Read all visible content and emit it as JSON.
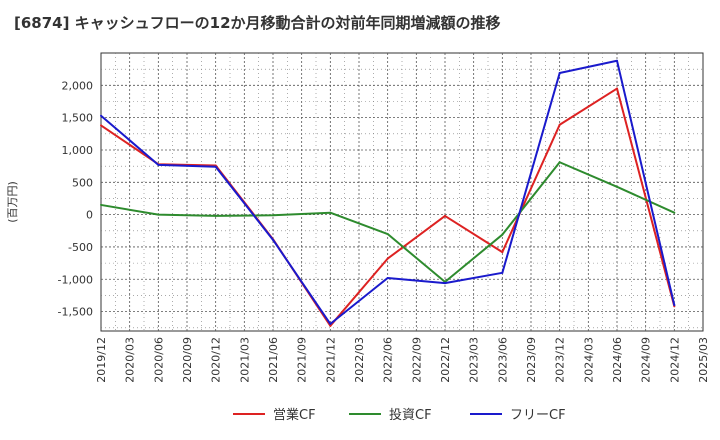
{
  "chart_data": {
    "type": "line",
    "title": "[6874]  キャッシュフローの12か月移動合計の対前年同期増減額の推移",
    "ylabel": "(百万円)",
    "xlabel": "",
    "ylim": [
      -1800,
      2500
    ],
    "yticks": [
      -1500,
      -1000,
      -500,
      0,
      500,
      1000,
      1500,
      2000
    ],
    "ytick_labels": [
      "-1,500",
      "-1,000",
      "-500",
      "0",
      "500",
      "1,000",
      "1,500",
      "2,000"
    ],
    "x_tick_labels": [
      "2019/12",
      "2020/03",
      "2020/06",
      "2020/09",
      "2020/12",
      "2021/03",
      "2021/06",
      "2021/09",
      "2021/12",
      "2022/03",
      "2022/06",
      "2022/09",
      "2022/12",
      "2023/03",
      "2023/06",
      "2023/09",
      "2023/12",
      "2024/03",
      "2024/06",
      "2024/09",
      "2024/12",
      "2025/03"
    ],
    "grid": true,
    "legend_position": "bottom",
    "series": [
      {
        "name": "営業CF",
        "color": "#dd2222",
        "points": [
          [
            0,
            1380
          ],
          [
            2,
            780
          ],
          [
            4,
            760
          ],
          [
            6,
            -380
          ],
          [
            8,
            -1720
          ],
          [
            10,
            -680
          ],
          [
            12,
            -20
          ],
          [
            14,
            -580
          ],
          [
            16,
            1390
          ],
          [
            18,
            1950
          ],
          [
            20,
            -1420
          ]
        ]
      },
      {
        "name": "投資CF",
        "color": "#2e8b2e",
        "points": [
          [
            0,
            150
          ],
          [
            2,
            0
          ],
          [
            4,
            -20
          ],
          [
            6,
            -10
          ],
          [
            8,
            30
          ],
          [
            10,
            -300
          ],
          [
            12,
            -1040
          ],
          [
            14,
            -310
          ],
          [
            16,
            810
          ],
          [
            18,
            430
          ],
          [
            20,
            30
          ]
        ]
      },
      {
        "name": "フリーCF",
        "color": "#1a1acc",
        "points": [
          [
            0,
            1530
          ],
          [
            2,
            770
          ],
          [
            4,
            740
          ],
          [
            6,
            -390
          ],
          [
            8,
            -1690
          ],
          [
            10,
            -980
          ],
          [
            12,
            -1060
          ],
          [
            14,
            -900
          ],
          [
            16,
            2190
          ],
          [
            18,
            2380
          ],
          [
            20,
            -1400
          ]
        ]
      }
    ]
  }
}
